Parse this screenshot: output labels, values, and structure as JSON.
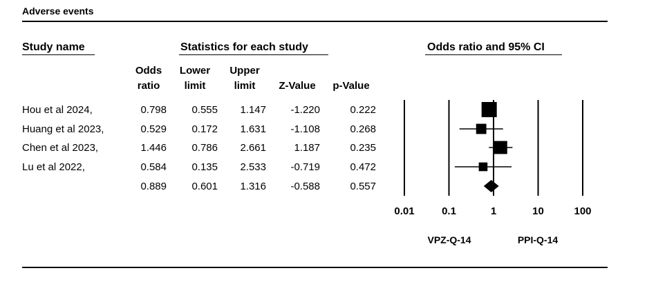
{
  "title": "Adverse events",
  "headers": {
    "study_name": "Study name",
    "stats_group": "Statistics for each study",
    "plot_title": "Odds ratio and 95% CI",
    "odds_ratio_1": "Odds",
    "odds_ratio_2": "ratio",
    "lower_1": "Lower",
    "lower_2": "limit",
    "upper_1": "Upper",
    "upper_2": "limit",
    "z": "Z-Value",
    "p": "p-Value"
  },
  "rows": [
    {
      "name": "Hou et al 2024,",
      "or": "0.798",
      "lower": "0.555",
      "upper": "1.147",
      "z": "-1.220",
      "p": "0.222"
    },
    {
      "name": "Huang et al 2023,",
      "or": "0.529",
      "lower": "0.172",
      "upper": "1.631",
      "z": "-1.108",
      "p": "0.268"
    },
    {
      "name": "Chen et al 2023,",
      "or": "1.446",
      "lower": "0.786",
      "upper": "2.661",
      "z": "1.187",
      "p": "0.235"
    },
    {
      "name": "Lu et al 2022,",
      "or": "0.584",
      "lower": "0.135",
      "upper": "2.533",
      "z": "-0.719",
      "p": "0.472"
    },
    {
      "name": "",
      "or": "0.889",
      "lower": "0.601",
      "upper": "1.316",
      "z": "-0.588",
      "p": "0.557"
    }
  ],
  "chart_data": {
    "type": "forest",
    "scale": "log",
    "xlim": [
      0.01,
      100
    ],
    "tick_labels": [
      "0.01",
      "0.1",
      "1",
      "10",
      "100"
    ],
    "tick_values": [
      0.01,
      0.1,
      1,
      10,
      100
    ],
    "favors_left": "VPZ-Q-14",
    "favors_right": "PPI-Q-14",
    "studies": [
      {
        "or": 0.798,
        "lower": 0.555,
        "upper": 1.147,
        "weight": 3
      },
      {
        "or": 0.529,
        "lower": 0.172,
        "upper": 1.631,
        "weight": 1
      },
      {
        "or": 1.446,
        "lower": 0.786,
        "upper": 2.661,
        "weight": 2
      },
      {
        "or": 0.584,
        "lower": 0.135,
        "upper": 2.533,
        "weight": 0.6
      }
    ],
    "summary": {
      "or": 0.889,
      "lower": 0.601,
      "upper": 1.316
    }
  }
}
